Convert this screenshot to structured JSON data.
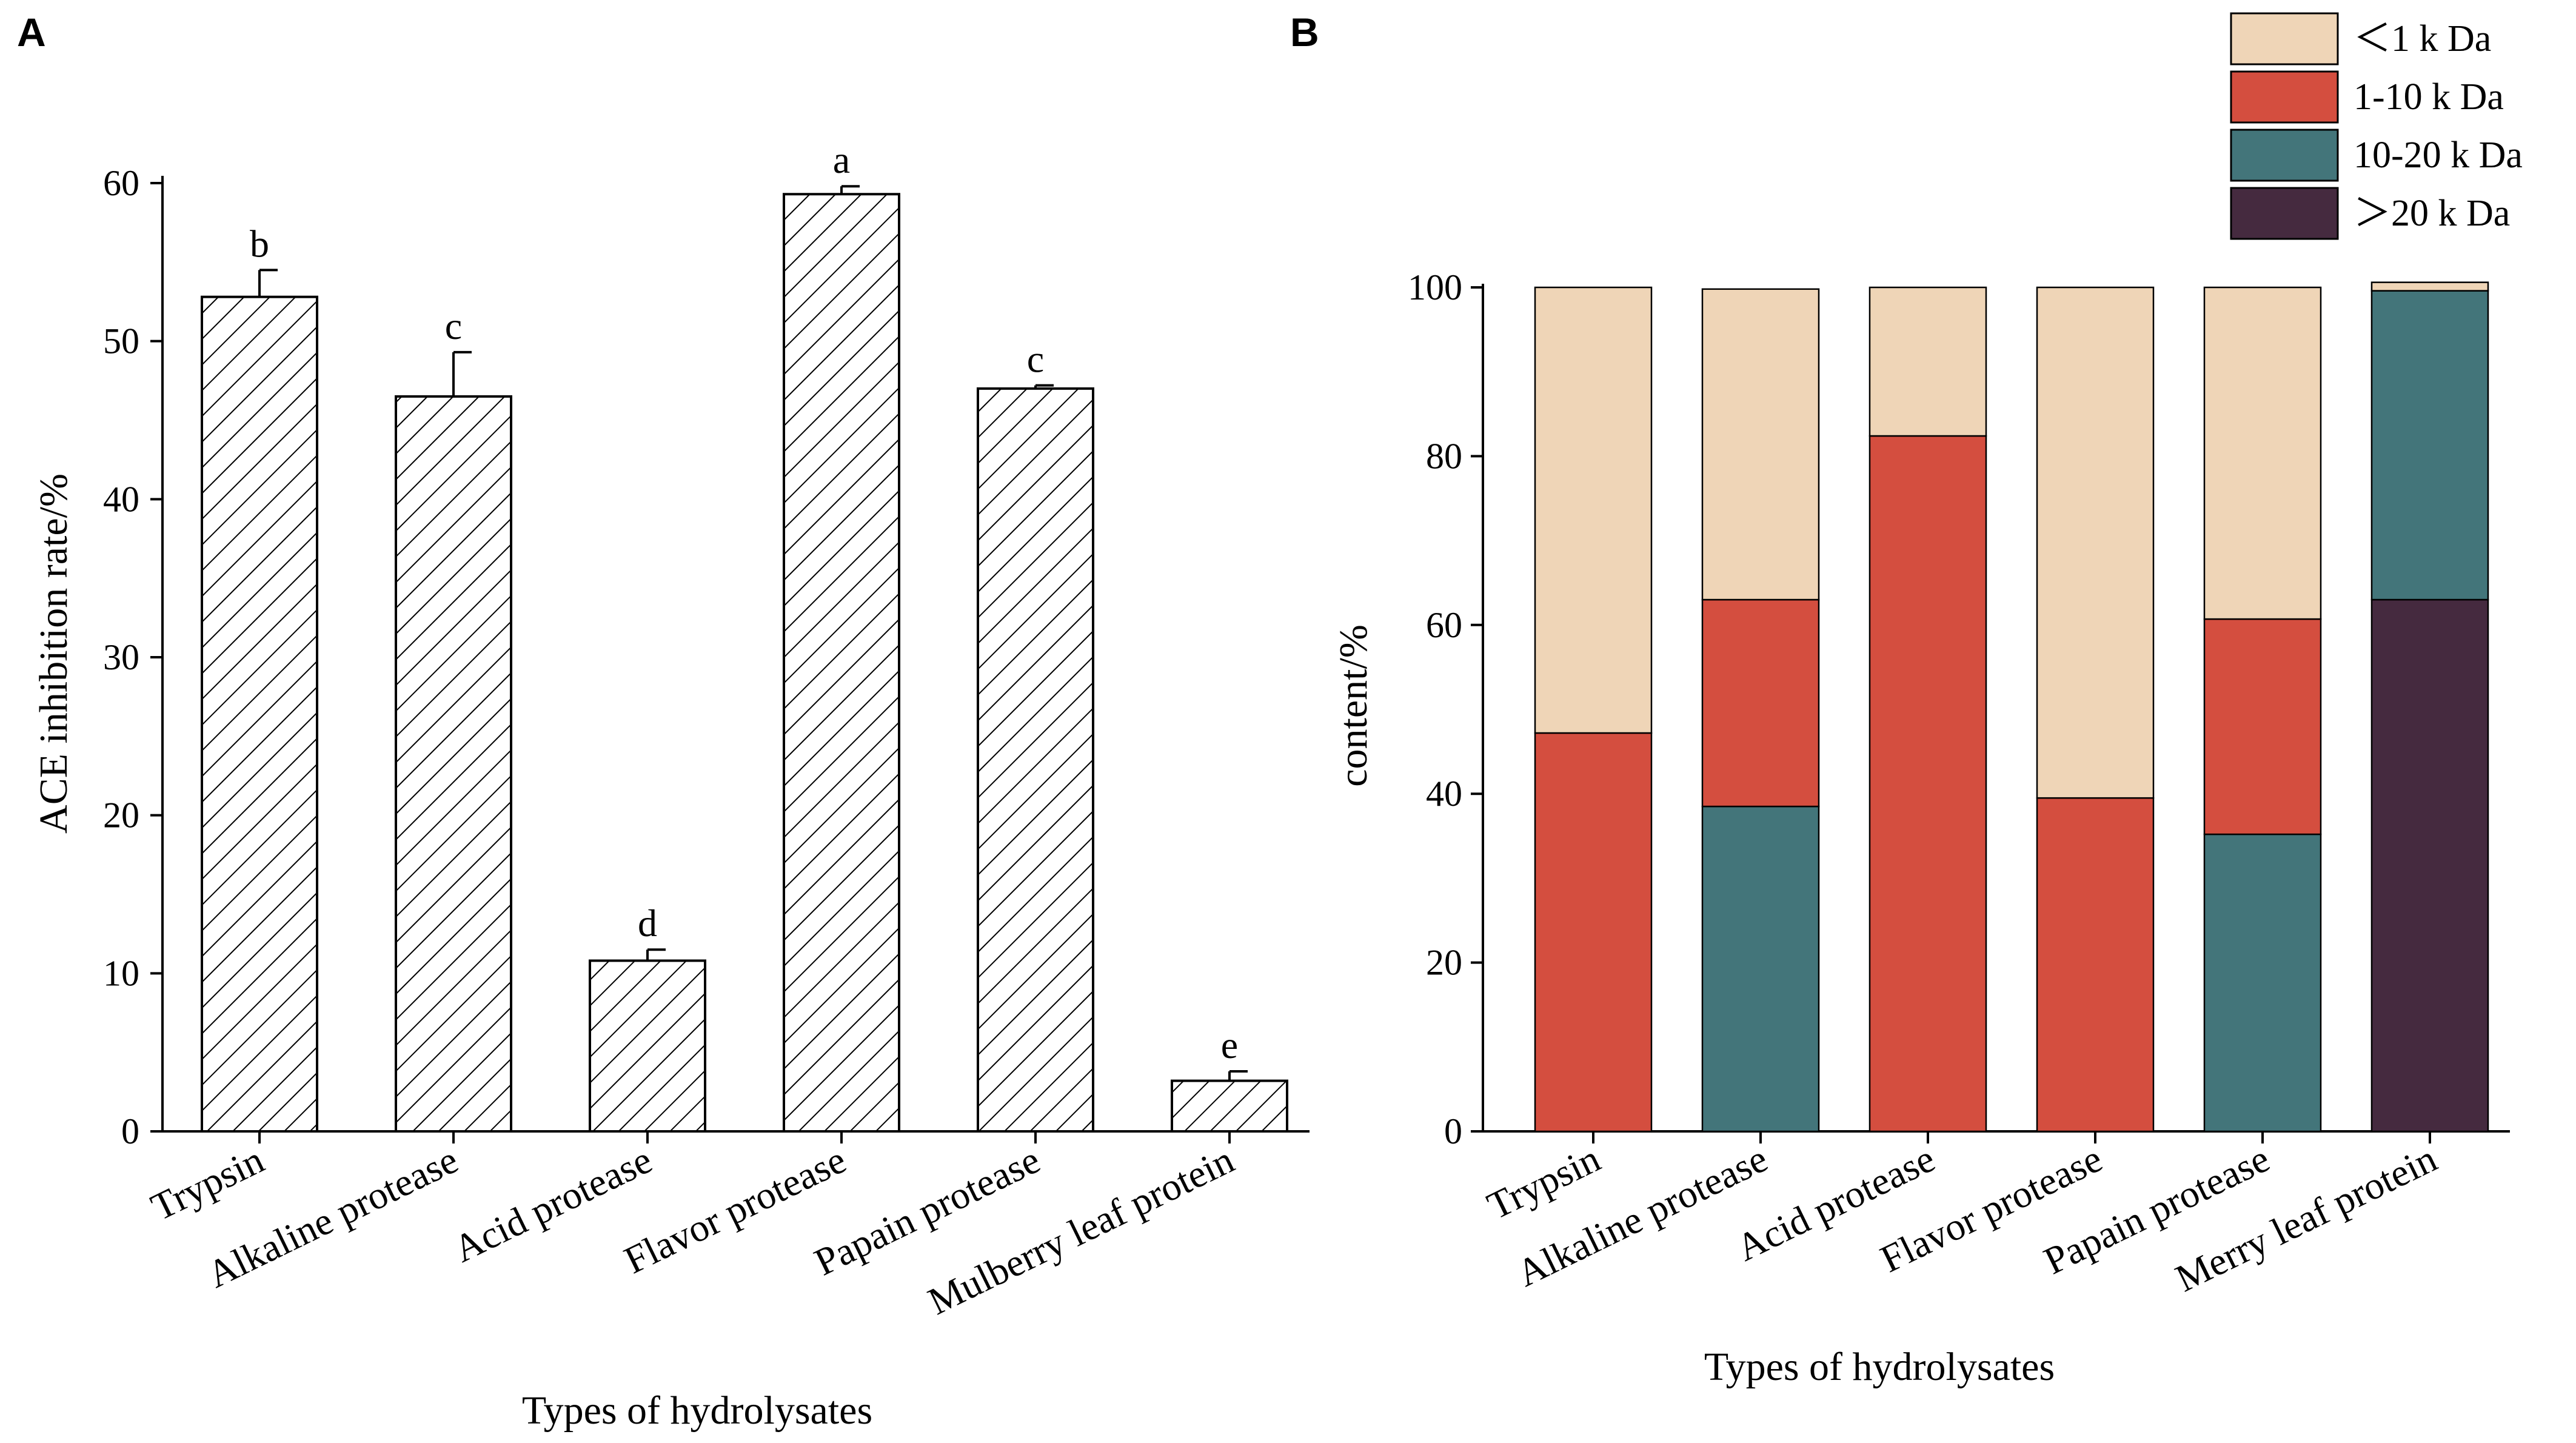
{
  "chart_data": [
    {
      "panel_label": "A",
      "type": "bar",
      "categories": [
        "Trypsin",
        "Alkaline protease",
        "Acid protease",
        "Flavor protease",
        "Papain protease",
        "Mulberry leaf protein"
      ],
      "values": [
        52.8,
        46.5,
        10.8,
        59.3,
        47.0,
        3.2
      ],
      "errors": [
        1.7,
        2.8,
        0.7,
        0.5,
        0.2,
        0.6
      ],
      "significance": [
        "b",
        "c",
        "d",
        "a",
        "c",
        "e"
      ],
      "xlabel": "Types of hydrolysates",
      "ylabel": "ACE inhibition rate/%",
      "ylim": [
        0,
        60
      ],
      "yticks": [
        "0",
        "10",
        "20",
        "30",
        "40",
        "50",
        "60"
      ],
      "pattern": "diagonal-hatch",
      "grid": false
    },
    {
      "panel_label": "B",
      "type": "bar",
      "stacked": true,
      "categories": [
        "Trypsin",
        "Alkaline protease",
        "Acid protease",
        "Flavor protease",
        "Papain protease",
        "Merry leaf protein"
      ],
      "series": [
        {
          "name": ">20 k Da",
          "label": "＞20 k Da",
          "color": "#452a3f",
          "values": [
            0,
            0,
            0,
            0,
            0,
            63.0
          ]
        },
        {
          "name": "10-20 k Da",
          "label": "10-20 k Da",
          "color": "#43757a",
          "values": [
            0,
            38.5,
            0,
            0,
            35.2,
            36.6
          ]
        },
        {
          "name": "1-10 k Da",
          "label": "1-10 k Da",
          "color": "#d44e3f",
          "values": [
            47.2,
            24.5,
            82.4,
            39.5,
            25.5,
            0
          ]
        },
        {
          "name": "<1 k Da",
          "label": "＜1 k Da",
          "color": "#efd5b7",
          "values": [
            52.8,
            36.8,
            17.6,
            60.5,
            39.3,
            1.0
          ]
        }
      ],
      "legend_order": [
        "<1 k Da",
        "1-10 k Da",
        "10-20 k Da",
        ">20 k Da"
      ],
      "legend_position": "top-right",
      "xlabel": "Types of hydrolysates",
      "ylabel": "content/%",
      "ylim": [
        0,
        100
      ],
      "yticks": [
        "0",
        "20",
        "40",
        "60",
        "80",
        "100"
      ],
      "grid": false
    }
  ]
}
